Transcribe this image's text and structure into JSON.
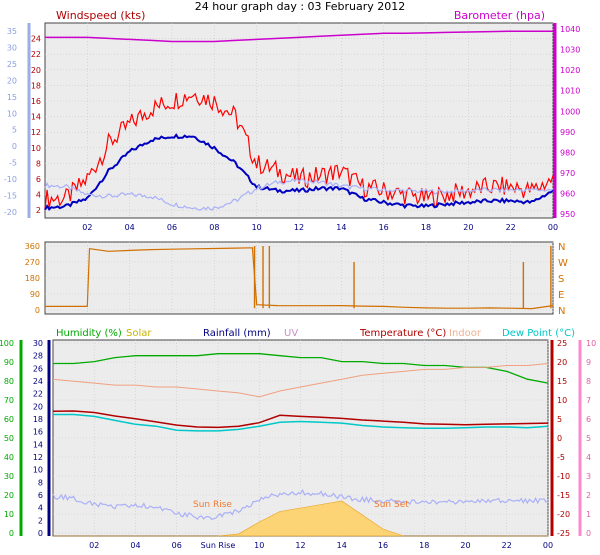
{
  "page_title": "24 hour graph day : 03 February 2012",
  "chart_data": [
    {
      "id": "wind",
      "type": "line",
      "left_label": "Windspeed (kts)",
      "right_label": "Barometer (hpa)",
      "x_ticks": [
        "02",
        "04",
        "06",
        "08",
        "10",
        "12",
        "14",
        "16",
        "18",
        "20",
        "22",
        "00"
      ],
      "y_ticks_inner": [
        "24",
        "22",
        "20",
        "18",
        "16",
        "14",
        "12",
        "10",
        "8",
        "6",
        "4",
        "2"
      ],
      "y_ticks_outer": [
        "35",
        "30",
        "25",
        "20",
        "15",
        "10",
        "5",
        "0",
        "-5",
        "-10",
        "-15",
        "-20"
      ],
      "y_ticks_right": [
        "1040",
        "1030",
        "1020",
        "1010",
        "1000",
        "990",
        "980",
        "970",
        "960",
        "950"
      ],
      "hours": [
        0,
        1,
        2,
        3,
        4,
        5,
        6,
        7,
        8,
        9,
        10,
        11,
        12,
        13,
        14,
        15,
        16,
        17,
        18,
        19,
        20,
        21,
        22,
        23,
        24
      ],
      "series": [
        {
          "name": "gust",
          "color": "#ff0000",
          "values": [
            3.5,
            3.5,
            6,
            10.5,
            13,
            15,
            16,
            17,
            16,
            14,
            8,
            7,
            6,
            6.5,
            7,
            5,
            4.5,
            4,
            3.5,
            4,
            4.5,
            5,
            5,
            4.5,
            6
          ]
        },
        {
          "name": "wind",
          "color": "#0000c0",
          "values": [
            2.3,
            2.5,
            3.5,
            7,
            9.5,
            11,
            11.5,
            11.5,
            10,
            8,
            5,
            4.5,
            4.5,
            4.8,
            4.8,
            3.5,
            3,
            2.6,
            2.5,
            2.8,
            3,
            3.2,
            3.2,
            3,
            4.5
          ]
        },
        {
          "name": "temp",
          "color": "#aab0f8",
          "values": [
            5.2,
            5,
            4,
            3.8,
            4,
            3.8,
            2.8,
            2.3,
            2.3,
            3.2,
            4.8,
            5.6,
            5.8,
            5.6,
            5.1,
            4.8,
            4.6,
            4.5,
            4.4,
            4.4,
            4.5,
            4.6,
            4.6,
            4.6,
            4.6
          ]
        },
        {
          "name": "barometer",
          "color": "#cc00cc",
          "values": [
            1036,
            1036,
            1036,
            1035.5,
            1035,
            1034.5,
            1034,
            1034,
            1034,
            1034.5,
            1035,
            1035.5,
            1036,
            1036.5,
            1037,
            1037.5,
            1038,
            1038,
            1038.2,
            1038.4,
            1038.6,
            1038.8,
            1039,
            1039,
            1039
          ]
        }
      ]
    },
    {
      "id": "direction",
      "type": "line",
      "y_ticks_left": [
        "360",
        "270",
        "180",
        "90",
        "0"
      ],
      "y_ticks_right": [
        "N",
        "W",
        "S",
        "E",
        "N"
      ],
      "hours": [
        0,
        1,
        2,
        2.1,
        3,
        4,
        5,
        6,
        7,
        8,
        9,
        9.8,
        10,
        11,
        12,
        13,
        14,
        15,
        16,
        17,
        18,
        19,
        20,
        21,
        22,
        23,
        24
      ],
      "series": [
        {
          "name": "direction",
          "color": "#d07000",
          "values": [
            20,
            20,
            20,
            345,
            330,
            335,
            340,
            342,
            344,
            346,
            348,
            350,
            30,
            25,
            24,
            24,
            25,
            22,
            20,
            15,
            12,
            10,
            10,
            12,
            10,
            8,
            25
          ]
        }
      ]
    },
    {
      "id": "temperature",
      "type": "line",
      "legend": [
        {
          "label": "Humidity (%)",
          "color": "#00aa00"
        },
        {
          "label": "Solar",
          "color": "#c8b400"
        },
        {
          "label": "Rainfall (mm)",
          "color": "#000080"
        },
        {
          "label": "UV",
          "color": "#c890c8"
        },
        {
          "label": "Temperature (°C)",
          "color": "#b00000"
        },
        {
          "label": "Indoor",
          "color": "#f0b090"
        },
        {
          "label": "Dew Point (°C)",
          "color": "#00c8c8"
        }
      ],
      "y_ticks_humidity": [
        "100",
        "90",
        "80",
        "70",
        "60",
        "50",
        "40",
        "30",
        "20",
        "10",
        "0"
      ],
      "y_ticks_rain": [
        "30",
        "28",
        "26",
        "24",
        "22",
        "20",
        "18",
        "16",
        "14",
        "12",
        "10",
        "8",
        "6",
        "4",
        "2",
        "0"
      ],
      "y_ticks_temp": [
        "25",
        "20",
        "15",
        "10",
        "5",
        "0",
        "-5",
        "-10",
        "-15",
        "-20",
        "-25"
      ],
      "y_ticks_uv": [
        "10",
        "9",
        "8",
        "7",
        "6",
        "5",
        "4",
        "3",
        "2",
        "1",
        "0"
      ],
      "annotations": [
        "Sun Rise",
        "Sun Set"
      ],
      "hours": [
        0,
        1,
        2,
        3,
        4,
        5,
        6,
        7,
        8,
        9,
        10,
        11,
        12,
        13,
        14,
        15,
        16,
        17,
        18,
        19,
        20,
        21,
        22,
        23,
        24
      ],
      "series": [
        {
          "name": "humidity",
          "color": "#00aa00",
          "values": [
            88,
            88,
            89,
            91,
            92,
            92,
            92,
            92,
            93,
            93,
            93,
            92,
            91,
            91,
            89,
            89,
            88,
            88,
            87,
            87,
            86,
            86,
            84,
            80,
            78
          ]
        },
        {
          "name": "indoor",
          "color": "#f0a080",
          "values": [
            15,
            14.5,
            14,
            13.5,
            13.5,
            13,
            13,
            12.5,
            12,
            11.5,
            10.5,
            12,
            13,
            14,
            15,
            16,
            16.5,
            17,
            17.5,
            17.5,
            18,
            18,
            18.5,
            18.5,
            19
          ]
        },
        {
          "name": "temperature",
          "color": "#b00000",
          "values": [
            6.8,
            6.9,
            6.5,
            5.6,
            4.9,
            4.1,
            3.3,
            2.8,
            2.7,
            3,
            3.9,
            5.8,
            5.5,
            5.3,
            5,
            4.6,
            4.3,
            4,
            3.6,
            3.5,
            3.4,
            3.5,
            3.6,
            3.7,
            3.8
          ]
        },
        {
          "name": "dew_point",
          "color": "#00c8c8",
          "values": [
            6,
            6,
            5.5,
            4.5,
            3.5,
            3,
            2,
            1.8,
            1.8,
            2.2,
            3,
            4,
            4.2,
            4,
            3.8,
            3.2,
            2.8,
            2.6,
            2.5,
            2.5,
            2.6,
            2.8,
            2.8,
            2.6,
            3
          ]
        },
        {
          "name": "chill",
          "color": "#aab0f8",
          "values": [
            5.2,
            5,
            4,
            3.8,
            4,
            3.8,
            2.8,
            2.3,
            2.3,
            3.2,
            4.8,
            5.6,
            5.8,
            5.6,
            5.1,
            4.8,
            4.6,
            4.5,
            4.4,
            4.4,
            4.5,
            4.6,
            4.6,
            4.6,
            4.6
          ]
        },
        {
          "name": "solar",
          "color": "#ffd050",
          "values": [
            0,
            0,
            0,
            0,
            0,
            0,
            0,
            0,
            0,
            0.3,
            2,
            3.5,
            4,
            4.5,
            5,
            3,
            1,
            0,
            0,
            0,
            0,
            0,
            0,
            0,
            0
          ]
        }
      ]
    }
  ]
}
